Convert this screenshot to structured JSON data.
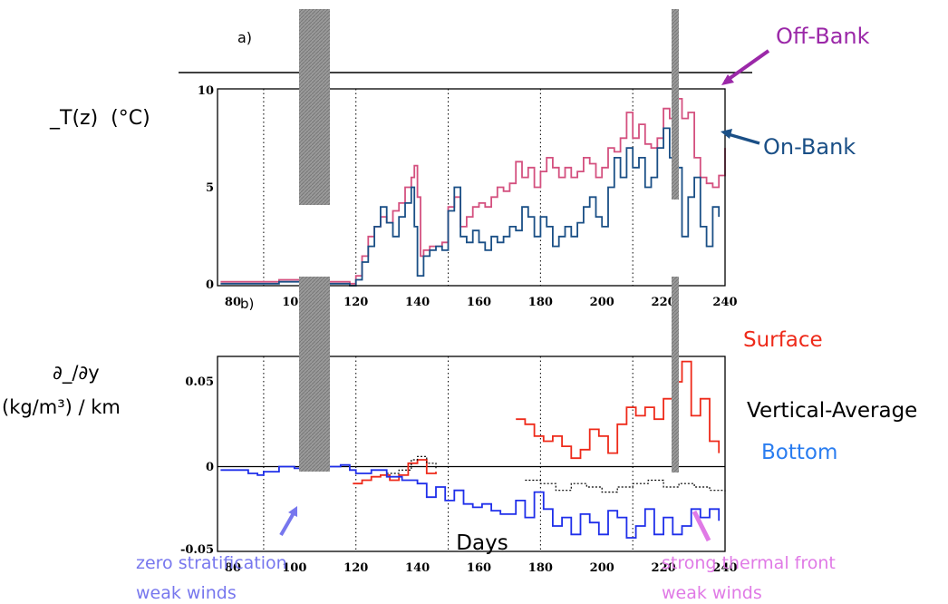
{
  "panels": [
    {
      "label": "a)",
      "ylabel": "_T(z)  (°C)",
      "ticks_y": [
        "10",
        "5",
        "0"
      ],
      "ticks_x": [
        "80",
        "100",
        "120",
        "140",
        "160",
        "180",
        "200",
        "220",
        "240"
      ]
    },
    {
      "label": "b)",
      "ylabel_line1": "∂_/∂y",
      "ylabel_line2": "(kg/m³) / km",
      "ticks_y": [
        "0.05",
        "0",
        "-0.05"
      ],
      "ticks_x": [
        "80",
        "100",
        "120",
        "140",
        "160",
        "180",
        "200",
        "220",
        "240"
      ],
      "xlabel": "Days"
    }
  ],
  "annotations": {
    "off_bank": "Off-Bank",
    "on_bank": "On-Bank",
    "surface": "Surface",
    "vertical_average": "Vertical-Average",
    "bottom": "Bottom",
    "left_note_1": "zero stratification",
    "left_note_2": "weak winds",
    "right_note_1": "strong thermal front",
    "right_note_2": "weak winds"
  },
  "colors": {
    "off_bank": "#d4507f",
    "on_bank": "#1a4f86",
    "surface": "#ee2a1a",
    "vertical_average": "#000000",
    "bottom": "#1f2fea",
    "shade": "#8c8c8c",
    "left_note": "#7777ee",
    "right_note": "#e07ae6",
    "off_bank_label": "#9b28a8",
    "on_bank_label": "#1a4f86",
    "bottom_label": "#2a7df0"
  },
  "chart_data": [
    {
      "type": "line",
      "xlim": [
        75,
        240
      ],
      "ylim": [
        0,
        10
      ],
      "grid": "vertical dotted at 90, 120, 150, 180, 210",
      "shaded_periods": [
        [
          103,
          111
        ],
        [
          226,
          228
        ]
      ],
      "series": [
        {
          "name": "Off-Bank",
          "x": [
            76,
            85,
            95,
            105,
            115,
            118,
            120,
            122,
            124,
            126,
            128,
            130,
            132,
            134,
            136,
            138,
            139,
            140,
            141,
            142,
            144,
            146,
            148,
            150,
            152,
            154,
            156,
            158,
            160,
            162,
            164,
            166,
            168,
            170,
            172,
            174,
            176,
            178,
            180,
            182,
            184,
            186,
            188,
            190,
            192,
            194,
            196,
            198,
            200,
            202,
            204,
            206,
            208,
            210,
            212,
            214,
            216,
            218,
            220,
            222,
            224,
            226,
            228,
            230,
            232,
            234,
            236,
            238,
            240
          ],
          "y": [
            0.2,
            0.2,
            0.3,
            0.2,
            0.2,
            0.1,
            0.5,
            1.5,
            2.5,
            3.0,
            3.5,
            3.2,
            3.8,
            4.2,
            5.0,
            5.5,
            6.1,
            4.5,
            1.5,
            1.8,
            2.0,
            2.0,
            2.2,
            4.0,
            4.5,
            3.0,
            3.5,
            4.0,
            4.2,
            4.0,
            4.5,
            5.0,
            4.8,
            5.2,
            6.3,
            5.5,
            6.0,
            5.0,
            5.8,
            6.5,
            6.0,
            5.5,
            6.0,
            5.5,
            5.8,
            6.5,
            6.2,
            5.5,
            6.0,
            7.0,
            6.8,
            7.5,
            8.8,
            7.5,
            8.2,
            7.2,
            7.0,
            7.5,
            9.0,
            8.5,
            9.5,
            8.5,
            8.8,
            6.5,
            5.5,
            5.2,
            5.0,
            5.6,
            7.0
          ]
        },
        {
          "name": "On-Bank",
          "x": [
            76,
            85,
            95,
            105,
            115,
            118,
            120,
            122,
            124,
            126,
            128,
            130,
            132,
            134,
            136,
            138,
            139,
            140,
            142,
            144,
            146,
            148,
            150,
            152,
            154,
            156,
            158,
            160,
            162,
            164,
            166,
            168,
            170,
            172,
            174,
            176,
            178,
            180,
            182,
            184,
            186,
            188,
            190,
            192,
            194,
            196,
            198,
            200,
            202,
            204,
            206,
            208,
            210,
            212,
            214,
            216,
            218,
            220,
            222,
            224,
            226,
            228,
            230,
            232,
            234,
            236,
            238
          ],
          "y": [
            0.1,
            0.1,
            0.2,
            0.1,
            0.1,
            0.0,
            0.3,
            1.2,
            2.0,
            3.0,
            4.0,
            3.2,
            2.5,
            3.5,
            4.2,
            5.0,
            3.0,
            0.5,
            1.5,
            1.8,
            2.0,
            1.8,
            3.8,
            5.0,
            2.5,
            2.2,
            2.8,
            2.2,
            1.8,
            2.5,
            2.2,
            2.5,
            3.0,
            2.8,
            4.0,
            3.5,
            2.5,
            3.5,
            3.0,
            2.0,
            2.5,
            3.0,
            2.5,
            3.2,
            4.0,
            4.5,
            3.5,
            3.0,
            5.0,
            6.5,
            5.5,
            7.0,
            6.0,
            6.5,
            5.0,
            5.5,
            7.0,
            8.0,
            6.5,
            6.0,
            2.5,
            4.5,
            5.5,
            3.0,
            2.0,
            4.0,
            3.5
          ]
        }
      ]
    },
    {
      "type": "line",
      "xlim": [
        75,
        240
      ],
      "ylim": [
        -0.05,
        0.065
      ],
      "xlabel": "Days",
      "grid": "vertical dotted at 90, 120, 150, 180, 210",
      "shaded_periods": [
        [
          103,
          111
        ],
        [
          225,
          227
        ]
      ],
      "series": [
        {
          "name": "Surface",
          "x": [
            119,
            122,
            125,
            128,
            131,
            134,
            137,
            140,
            143,
            146,
            172,
            175,
            178,
            181,
            184,
            187,
            190,
            193,
            196,
            199,
            202,
            205,
            208,
            211,
            214,
            217,
            220,
            223,
            226,
            229,
            232,
            235,
            238
          ],
          "y": [
            -0.01,
            -0.008,
            -0.006,
            -0.005,
            -0.008,
            -0.005,
            0.002,
            0.004,
            -0.004,
            -0.003,
            0.028,
            0.025,
            0.018,
            0.015,
            0.018,
            0.012,
            0.005,
            0.01,
            0.022,
            0.018,
            0.008,
            0.025,
            0.035,
            0.03,
            0.035,
            0.028,
            0.04,
            0.05,
            0.062,
            0.03,
            0.04,
            0.015,
            0.008
          ]
        },
        {
          "name": "Vertical-Average",
          "x": [
            130,
            134,
            138,
            140,
            143,
            146,
            175,
            180,
            185,
            190,
            195,
            200,
            205,
            210,
            215,
            220,
            225,
            230,
            235,
            240
          ],
          "y": [
            -0.004,
            -0.002,
            0.004,
            0.006,
            0.002,
            -0.002,
            -0.008,
            -0.01,
            -0.014,
            -0.01,
            -0.012,
            -0.015,
            -0.012,
            -0.01,
            -0.008,
            -0.012,
            -0.01,
            -0.012,
            -0.014,
            -0.016
          ]
        },
        {
          "name": "Bottom",
          "x": [
            76,
            85,
            88,
            90,
            95,
            100,
            105,
            110,
            115,
            118,
            120,
            125,
            130,
            135,
            140,
            143,
            146,
            149,
            152,
            155,
            158,
            161,
            164,
            167,
            172,
            175,
            178,
            181,
            184,
            187,
            190,
            193,
            196,
            199,
            202,
            205,
            208,
            211,
            214,
            217,
            220,
            223,
            226,
            229,
            232,
            235,
            238
          ],
          "y": [
            -0.002,
            -0.004,
            -0.005,
            -0.003,
            0.0,
            -0.001,
            0.001,
            0.0,
            0.001,
            -0.002,
            -0.004,
            -0.002,
            -0.006,
            -0.008,
            -0.01,
            -0.018,
            -0.012,
            -0.02,
            -0.014,
            -0.022,
            -0.024,
            -0.022,
            -0.026,
            -0.028,
            -0.02,
            -0.03,
            -0.015,
            -0.025,
            -0.035,
            -0.03,
            -0.04,
            -0.028,
            -0.033,
            -0.04,
            -0.026,
            -0.03,
            -0.042,
            -0.035,
            -0.025,
            -0.04,
            -0.03,
            -0.04,
            -0.035,
            -0.025,
            -0.03,
            -0.025,
            -0.032
          ]
        }
      ]
    }
  ]
}
